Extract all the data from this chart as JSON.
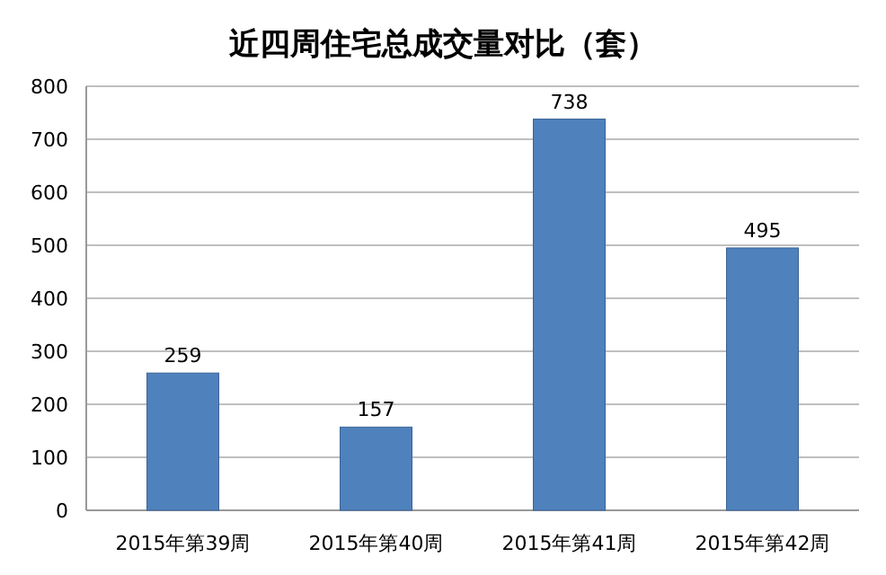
{
  "chart_data": {
    "type": "bar",
    "title": "近四周住宅总成交量对比（套）",
    "categories": [
      "2015年第39周",
      "2015年第40周",
      "2015年第41周",
      "2015年第42周"
    ],
    "values": [
      259,
      157,
      738,
      495
    ],
    "color": "#4f81bd",
    "ylim": [
      0,
      800
    ],
    "yticks": [
      0,
      100,
      200,
      300,
      400,
      500,
      600,
      700,
      800
    ],
    "grid": "y",
    "data_labels": true
  }
}
